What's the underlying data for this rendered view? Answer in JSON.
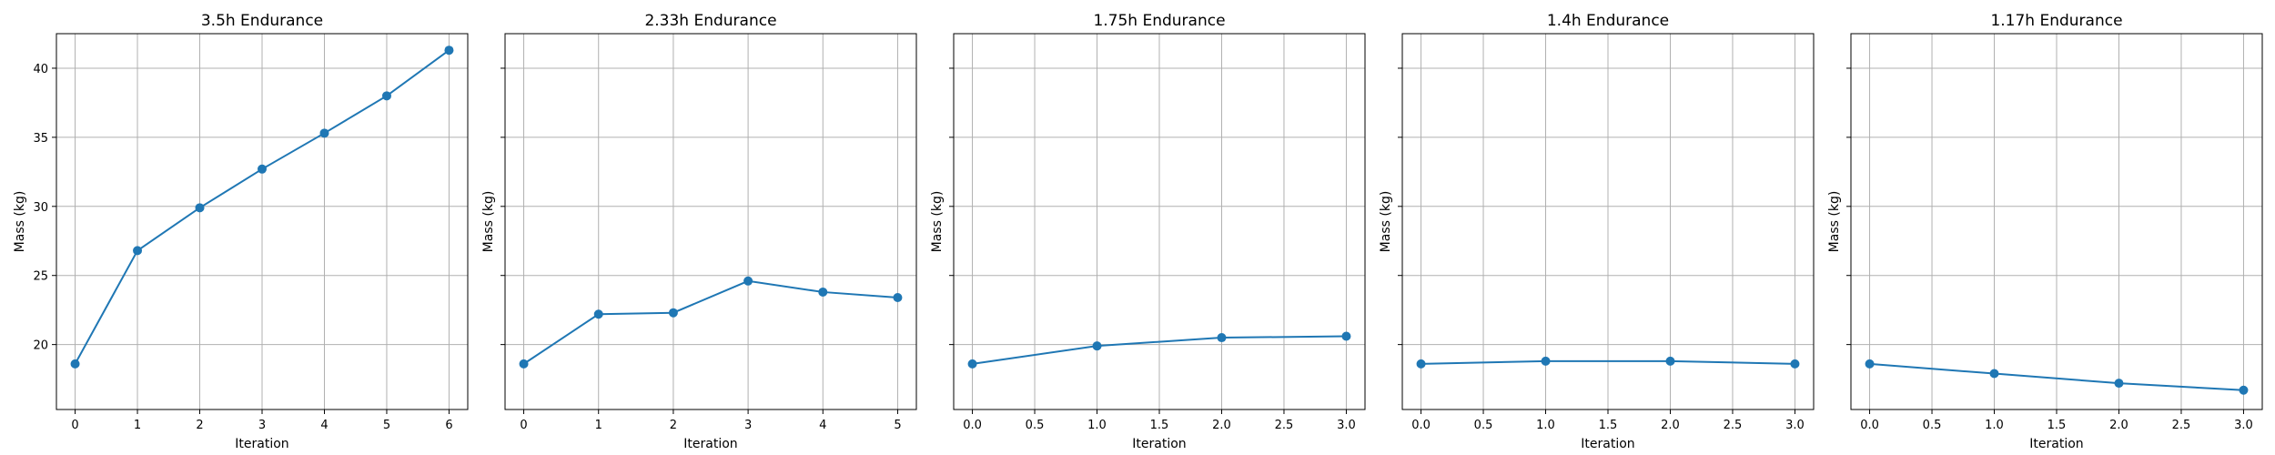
{
  "chart_data": [
    {
      "type": "line",
      "title": "3.5h Endurance",
      "xlabel": "Iteration",
      "ylabel": "Mass (kg)",
      "x": [
        0,
        1,
        2,
        3,
        4,
        5,
        6
      ],
      "y": [
        18.6,
        26.8,
        29.9,
        32.7,
        35.3,
        38.0,
        41.3
      ],
      "xticks": [
        0,
        1,
        2,
        3,
        4,
        5,
        6
      ],
      "xtick_labels": [
        "0",
        "1",
        "2",
        "3",
        "4",
        "5",
        "6"
      ],
      "xlim": [
        -0.3,
        6.3
      ],
      "yticks": [
        20,
        25,
        30,
        35,
        40
      ],
      "ytick_labels": [
        "20",
        "25",
        "30",
        "35",
        "40"
      ],
      "ylim": [
        15.3,
        42.5
      ],
      "show_ytick_labels": true,
      "grid": true,
      "color": "#1f77b4"
    },
    {
      "type": "line",
      "title": "2.33h Endurance",
      "xlabel": "Iteration",
      "ylabel": "Mass (kg)",
      "x": [
        0,
        1,
        2,
        3,
        4,
        5
      ],
      "y": [
        18.6,
        22.2,
        22.3,
        24.6,
        23.8,
        23.4
      ],
      "xticks": [
        0,
        1,
        2,
        3,
        4,
        5
      ],
      "xtick_labels": [
        "0",
        "1",
        "2",
        "3",
        "4",
        "5"
      ],
      "xlim": [
        -0.25,
        5.25
      ],
      "yticks": [
        20,
        25,
        30,
        35,
        40
      ],
      "ytick_labels": [
        "20",
        "25",
        "30",
        "35",
        "40"
      ],
      "ylim": [
        15.3,
        42.5
      ],
      "show_ytick_labels": false,
      "grid": true,
      "color": "#1f77b4"
    },
    {
      "type": "line",
      "title": "1.75h Endurance",
      "xlabel": "Iteration",
      "ylabel": "Mass (kg)",
      "x": [
        0,
        1,
        2,
        3
      ],
      "y": [
        18.6,
        19.9,
        20.5,
        20.6
      ],
      "xticks": [
        0,
        0.5,
        1,
        1.5,
        2,
        2.5,
        3
      ],
      "xtick_labels": [
        "0.0",
        "0.5",
        "1.0",
        "1.5",
        "2.0",
        "2.5",
        "3.0"
      ],
      "xlim": [
        -0.15,
        3.15
      ],
      "yticks": [
        20,
        25,
        30,
        35,
        40
      ],
      "ytick_labels": [
        "20",
        "25",
        "30",
        "35",
        "40"
      ],
      "ylim": [
        15.3,
        42.5
      ],
      "show_ytick_labels": false,
      "grid": true,
      "color": "#1f77b4"
    },
    {
      "type": "line",
      "title": "1.4h Endurance",
      "xlabel": "Iteration",
      "ylabel": "Mass (kg)",
      "x": [
        0,
        1,
        2,
        3
      ],
      "y": [
        18.6,
        18.8,
        18.8,
        18.6
      ],
      "xticks": [
        0,
        0.5,
        1,
        1.5,
        2,
        2.5,
        3
      ],
      "xtick_labels": [
        "0.0",
        "0.5",
        "1.0",
        "1.5",
        "2.0",
        "2.5",
        "3.0"
      ],
      "xlim": [
        -0.15,
        3.15
      ],
      "yticks": [
        20,
        25,
        30,
        35,
        40
      ],
      "ytick_labels": [
        "20",
        "25",
        "30",
        "35",
        "40"
      ],
      "ylim": [
        15.3,
        42.5
      ],
      "show_ytick_labels": false,
      "grid": true,
      "color": "#1f77b4"
    },
    {
      "type": "line",
      "title": "1.17h Endurance",
      "xlabel": "Iteration",
      "ylabel": "Mass (kg)",
      "x": [
        0,
        1,
        2,
        3
      ],
      "y": [
        18.6,
        17.9,
        17.2,
        16.7
      ],
      "xticks": [
        0,
        0.5,
        1,
        1.5,
        2,
        2.5,
        3
      ],
      "xtick_labels": [
        "0.0",
        "0.5",
        "1.0",
        "1.5",
        "2.0",
        "2.5",
        "3.0"
      ],
      "xlim": [
        -0.15,
        3.15
      ],
      "yticks": [
        20,
        25,
        30,
        35,
        40
      ],
      "ytick_labels": [
        "20",
        "25",
        "30",
        "35",
        "40"
      ],
      "ylim": [
        15.3,
        42.5
      ],
      "show_ytick_labels": false,
      "grid": true,
      "color": "#1f77b4"
    }
  ]
}
